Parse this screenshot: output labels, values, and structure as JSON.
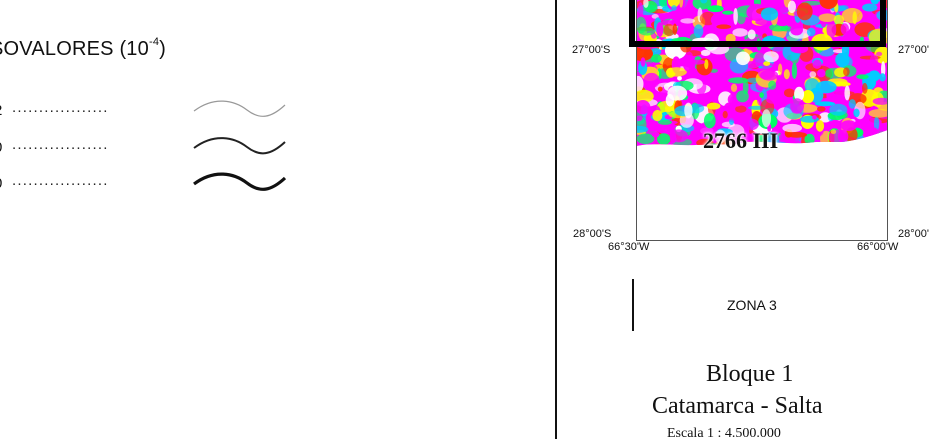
{
  "legend": {
    "title": "SOVALORES (10",
    "title_exp": "-4",
    "title_close": ")",
    "rows": [
      {
        "label": "2",
        "dots": "..................",
        "line_color": "#999999"
      },
      {
        "label": "0",
        "dots": "..................",
        "line_color": "#222222"
      },
      {
        "label": "0",
        "dots": "..................",
        "line_color": "#111111"
      }
    ]
  },
  "map": {
    "lat_top_left": "27°00'S",
    "lat_top_right": "27°00'",
    "lat_bottom_left": "28°00'S",
    "lat_bottom_right": "28°00'",
    "lon_left": "66°30'W",
    "lon_right": "66°00'W",
    "sheet_label": "2766 III",
    "colors": [
      "#ff00ff",
      "#ff3300",
      "#ffff00",
      "#00ff66",
      "#00ccff",
      "#ffffff"
    ]
  },
  "zone": {
    "label": "ZONA 3"
  },
  "block": {
    "title": "Bloque 1",
    "region": "Catamarca - Salta",
    "scale": "Escala 1 : 4.500.000"
  }
}
